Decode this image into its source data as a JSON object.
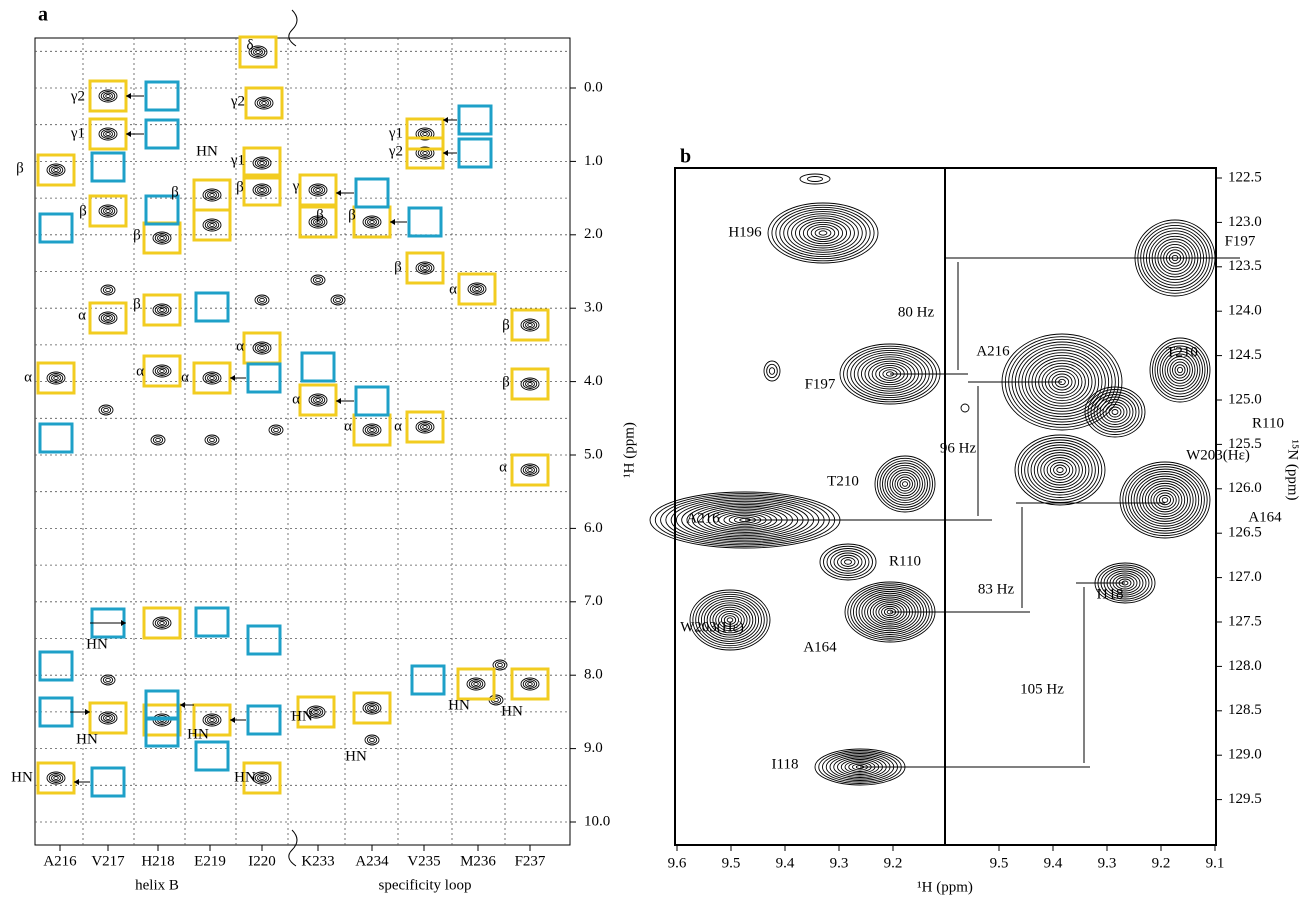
{
  "panel_a": {
    "label": "a",
    "y_axis_title": "¹H (ppm)",
    "y_ticks": [
      "0.0",
      "1.0",
      "2.0",
      "3.0",
      "4.0",
      "5.0",
      "6.0",
      "7.0",
      "8.0",
      "9.0",
      "10.0"
    ],
    "columns": [
      "A216",
      "V217",
      "H218",
      "E219",
      "I220",
      "K233",
      "A234",
      "V235",
      "M236",
      "F237"
    ],
    "groups": [
      "helix B",
      "specificity loop"
    ],
    "peak_labels": [
      "δ",
      "γ2",
      "γ1",
      "β",
      "γ2",
      "HN",
      "γ1",
      "β",
      "γ",
      "β",
      "β",
      "β",
      "β",
      "β",
      "β",
      "α",
      "γ1",
      "γ2",
      "α",
      "β",
      "β",
      "α",
      "α",
      "α",
      "α",
      "β",
      "α",
      "α",
      "α",
      "α",
      "HN",
      "HN",
      "HN",
      "HN",
      "HN",
      "HN",
      "HN",
      "HN",
      "HN"
    ]
  },
  "panel_b": {
    "label": "b",
    "x_axis_title": "¹H (ppm)",
    "y_axis_title": "¹⁵N (ppm)",
    "x_ticks": [
      "9.6",
      "9.5",
      "9.4",
      "9.3",
      "9.2",
      "9.5",
      "9.4",
      "9.3",
      "9.2",
      "9.1"
    ],
    "y_ticks": [
      "122.5",
      "123.0",
      "123.5",
      "124.0",
      "124.5",
      "125.0",
      "125.5",
      "126.0",
      "126.5",
      "127.0",
      "127.5",
      "128.0",
      "128.5",
      "129.0",
      "129.5"
    ],
    "peak_labels": [
      "H196",
      "F197",
      "A216",
      "T210",
      "F197",
      "R110",
      "W203(Hε)",
      "T210",
      "A216",
      "A164",
      "R110",
      "I118",
      "W203(Hε)",
      "A164",
      "I118"
    ],
    "couplings": [
      "80 Hz",
      "96 Hz",
      "83 Hz",
      "105 Hz"
    ]
  }
}
